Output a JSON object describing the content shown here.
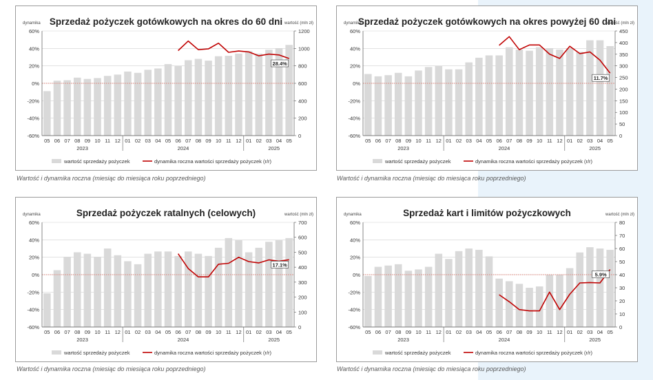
{
  "x_labels": [
    "05",
    "06",
    "07",
    "08",
    "09",
    "10",
    "11",
    "12",
    "01",
    "02",
    "03",
    "04",
    "05",
    "06",
    "07",
    "08",
    "09",
    "10",
    "11",
    "12",
    "01",
    "02",
    "03",
    "04",
    "05"
  ],
  "years": [
    {
      "label": "2023",
      "idx": 3.5
    },
    {
      "label": "2024",
      "idx": 13.5
    },
    {
      "label": "2025",
      "idx": 22.5
    }
  ],
  "legend": {
    "bars": "wartość sprzedaży pożyczek",
    "line": "dynamika roczna wartości sprzedaży pożyczek (r/r)"
  },
  "caption": "Wartość i dynamika roczna (miesiąc do miesiąca roku poprzedniego)",
  "colors": {
    "bar": "#d9d9d9",
    "line": "#c00000",
    "zero_line": "#e05a4a",
    "grid": "#d0d0d0",
    "axis": "#555555"
  },
  "chart_data": [
    {
      "type": "bar",
      "title": "Sprzedaż pożyczek gotówkowych na okres do 60 dni",
      "left_axis_title": "dynamika",
      "right_axis_title": "wartość (mln zł)",
      "left_ticks": [
        "60%",
        "40%",
        "20%",
        "0%",
        "-20%",
        "-40%",
        "-60%"
      ],
      "right_ticks": [
        "1200",
        "1000",
        "800",
        "600",
        "400",
        "200",
        "0"
      ],
      "ylim_left": [
        -60,
        60
      ],
      "ylim_right": [
        0,
        1200
      ],
      "bar_values": [
        510,
        630,
        635,
        665,
        650,
        660,
        685,
        700,
        735,
        720,
        755,
        770,
        820,
        800,
        865,
        880,
        860,
        910,
        915,
        940,
        970,
        940,
        985,
        1000,
        1040
      ],
      "line_start_index": 13,
      "line_values": [
        37.5,
        48.5,
        38.5,
        39.5,
        46.0,
        35.5,
        37.0,
        36.0,
        31.5,
        33.5,
        32.5,
        28.4
      ],
      "end_label": "28.4%"
    },
    {
      "type": "bar",
      "title": "Sprzedaż pożyczek gotówkowych na okres powyżej 60 dni",
      "left_axis_title": "dynamika",
      "right_axis_title": "wartość (mln zł)",
      "left_ticks": [
        "60%",
        "40%",
        "20%",
        "0%",
        "-20%",
        "-40%",
        "-60%"
      ],
      "right_ticks": [
        "450",
        "400",
        "350",
        "300",
        "250",
        "200",
        "150",
        "100",
        "50",
        "0"
      ],
      "ylim_left": [
        -60,
        60
      ],
      "ylim_right": [
        0,
        450
      ],
      "bar_values": [
        265,
        255,
        260,
        270,
        255,
        280,
        295,
        300,
        285,
        285,
        315,
        335,
        345,
        345,
        380,
        370,
        365,
        380,
        375,
        370,
        375,
        360,
        410,
        410,
        385
      ],
      "line_start_index": 13,
      "line_values": [
        43.5,
        53.5,
        38.5,
        44.0,
        44.0,
        33.5,
        28.5,
        42.5,
        34.0,
        36.0,
        26.5,
        11.7
      ],
      "end_label": "11.7%"
    },
    {
      "type": "bar",
      "title": "Sprzedaż pożyczek ratalnych (celowych)",
      "left_axis_title": "dynamika",
      "right_axis_title": "wartość (mln zł)",
      "left_ticks": [
        "60%",
        "40%",
        "20%",
        "0%",
        "-20%",
        "-40%",
        "-60%"
      ],
      "right_ticks": [
        "700",
        "600",
        "500",
        "400",
        "300",
        "200",
        "100",
        "0"
      ],
      "ylim_left": [
        -60,
        60
      ],
      "ylim_right": [
        0,
        700
      ],
      "bar_values": [
        225,
        380,
        470,
        500,
        490,
        470,
        525,
        480,
        440,
        420,
        490,
        505,
        505,
        475,
        505,
        490,
        475,
        530,
        595,
        580,
        500,
        530,
        570,
        580,
        595
      ],
      "line_start_index": 13,
      "line_values": [
        24.0,
        7.0,
        -2.5,
        -2.5,
        12.0,
        13.0,
        20.0,
        15.0,
        13.5,
        17.0,
        15.5,
        17.1
      ],
      "end_label": "17.1%"
    },
    {
      "type": "bar",
      "title": "Sprzedaż kart i limitów pożyczkowych",
      "left_axis_title": "dynamika",
      "right_axis_title": "wartość (mln zł)",
      "left_ticks": [
        "60%",
        "40%",
        "20%",
        "0%",
        "-20%",
        "-40%",
        "-60%"
      ],
      "right_ticks": [
        "80",
        "70",
        "60",
        "50",
        "40",
        "30",
        "20",
        "10",
        "0"
      ],
      "ylim_left": [
        -60,
        60
      ],
      "ylim_right": [
        0,
        80
      ],
      "bar_values": [
        39,
        46,
        47,
        48,
        43,
        44,
        46,
        56,
        52,
        58,
        60,
        59,
        54,
        37,
        35,
        33,
        30,
        31,
        40,
        40,
        45,
        57,
        61,
        60,
        59
      ],
      "line_start_index": 13,
      "line_values": [
        -23.0,
        -31.0,
        -40.0,
        -41.5,
        -41.5,
        -20.0,
        -40.0,
        -22.5,
        -9.5,
        -9.0,
        -9.5,
        5.9
      ],
      "end_label": "5.9%"
    }
  ]
}
